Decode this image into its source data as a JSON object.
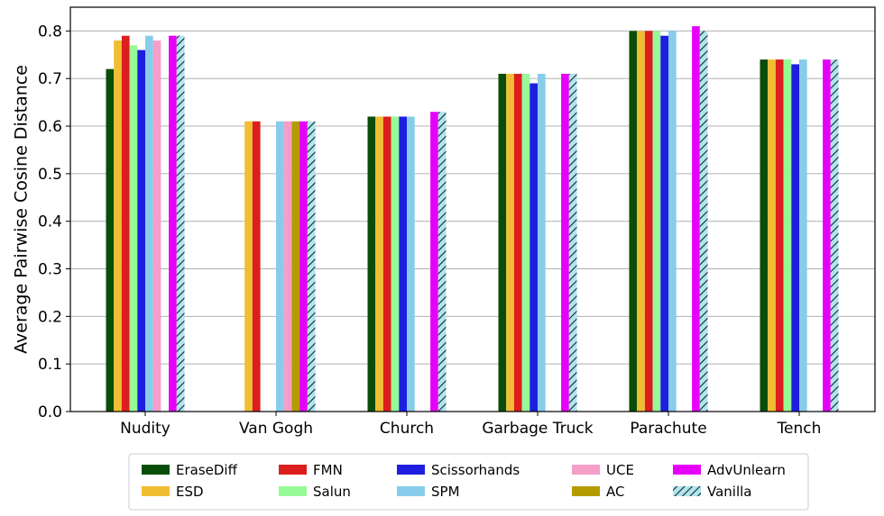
{
  "chart_data": {
    "type": "bar",
    "ylabel": "Average Pairwise Cosine Distance",
    "xlabel": "",
    "ylim": [
      0.0,
      0.85
    ],
    "yticks": [
      "0.0",
      "0.1",
      "0.2",
      "0.3",
      "0.4",
      "0.5",
      "0.6",
      "0.7",
      "0.8"
    ],
    "grid": "horizontal",
    "legend_position": "bottom",
    "categories": [
      "Nudity",
      "Van Gogh",
      "Church",
      "Garbage Truck",
      "Parachute",
      "Tench"
    ],
    "series": [
      {
        "name": "EraseDiff",
        "color": "#0a4d0a",
        "values": [
          0.72,
          null,
          0.62,
          0.71,
          0.8,
          0.74
        ]
      },
      {
        "name": "ESD",
        "color": "#f0be32",
        "values": [
          0.78,
          0.61,
          0.62,
          0.71,
          0.8,
          0.74
        ]
      },
      {
        "name": "FMN",
        "color": "#dc1e1e",
        "values": [
          0.79,
          0.61,
          0.62,
          0.71,
          0.8,
          0.74
        ]
      },
      {
        "name": "Salun",
        "color": "#96fa96",
        "values": [
          0.77,
          null,
          0.62,
          0.71,
          0.8,
          0.74
        ]
      },
      {
        "name": "Scissorhands",
        "color": "#1e1ee1",
        "values": [
          0.76,
          null,
          0.62,
          0.69,
          0.79,
          0.73
        ]
      },
      {
        "name": "SPM",
        "color": "#87cdeb",
        "values": [
          0.79,
          0.61,
          0.62,
          0.71,
          0.8,
          0.74
        ]
      },
      {
        "name": "UCE",
        "color": "#f59ec8",
        "values": [
          0.78,
          0.61,
          null,
          null,
          null,
          null
        ]
      },
      {
        "name": "AC",
        "color": "#b49b00",
        "values": [
          null,
          0.61,
          null,
          null,
          null,
          null
        ]
      },
      {
        "name": "AdvUnlearn",
        "color": "#e600fa",
        "values": [
          0.79,
          0.61,
          0.63,
          0.71,
          0.81,
          0.74
        ]
      },
      {
        "name": "Vanilla",
        "color": "#aee6f0",
        "hatch": true,
        "values": [
          0.79,
          0.61,
          0.63,
          0.71,
          0.8,
          0.74
        ]
      }
    ]
  }
}
